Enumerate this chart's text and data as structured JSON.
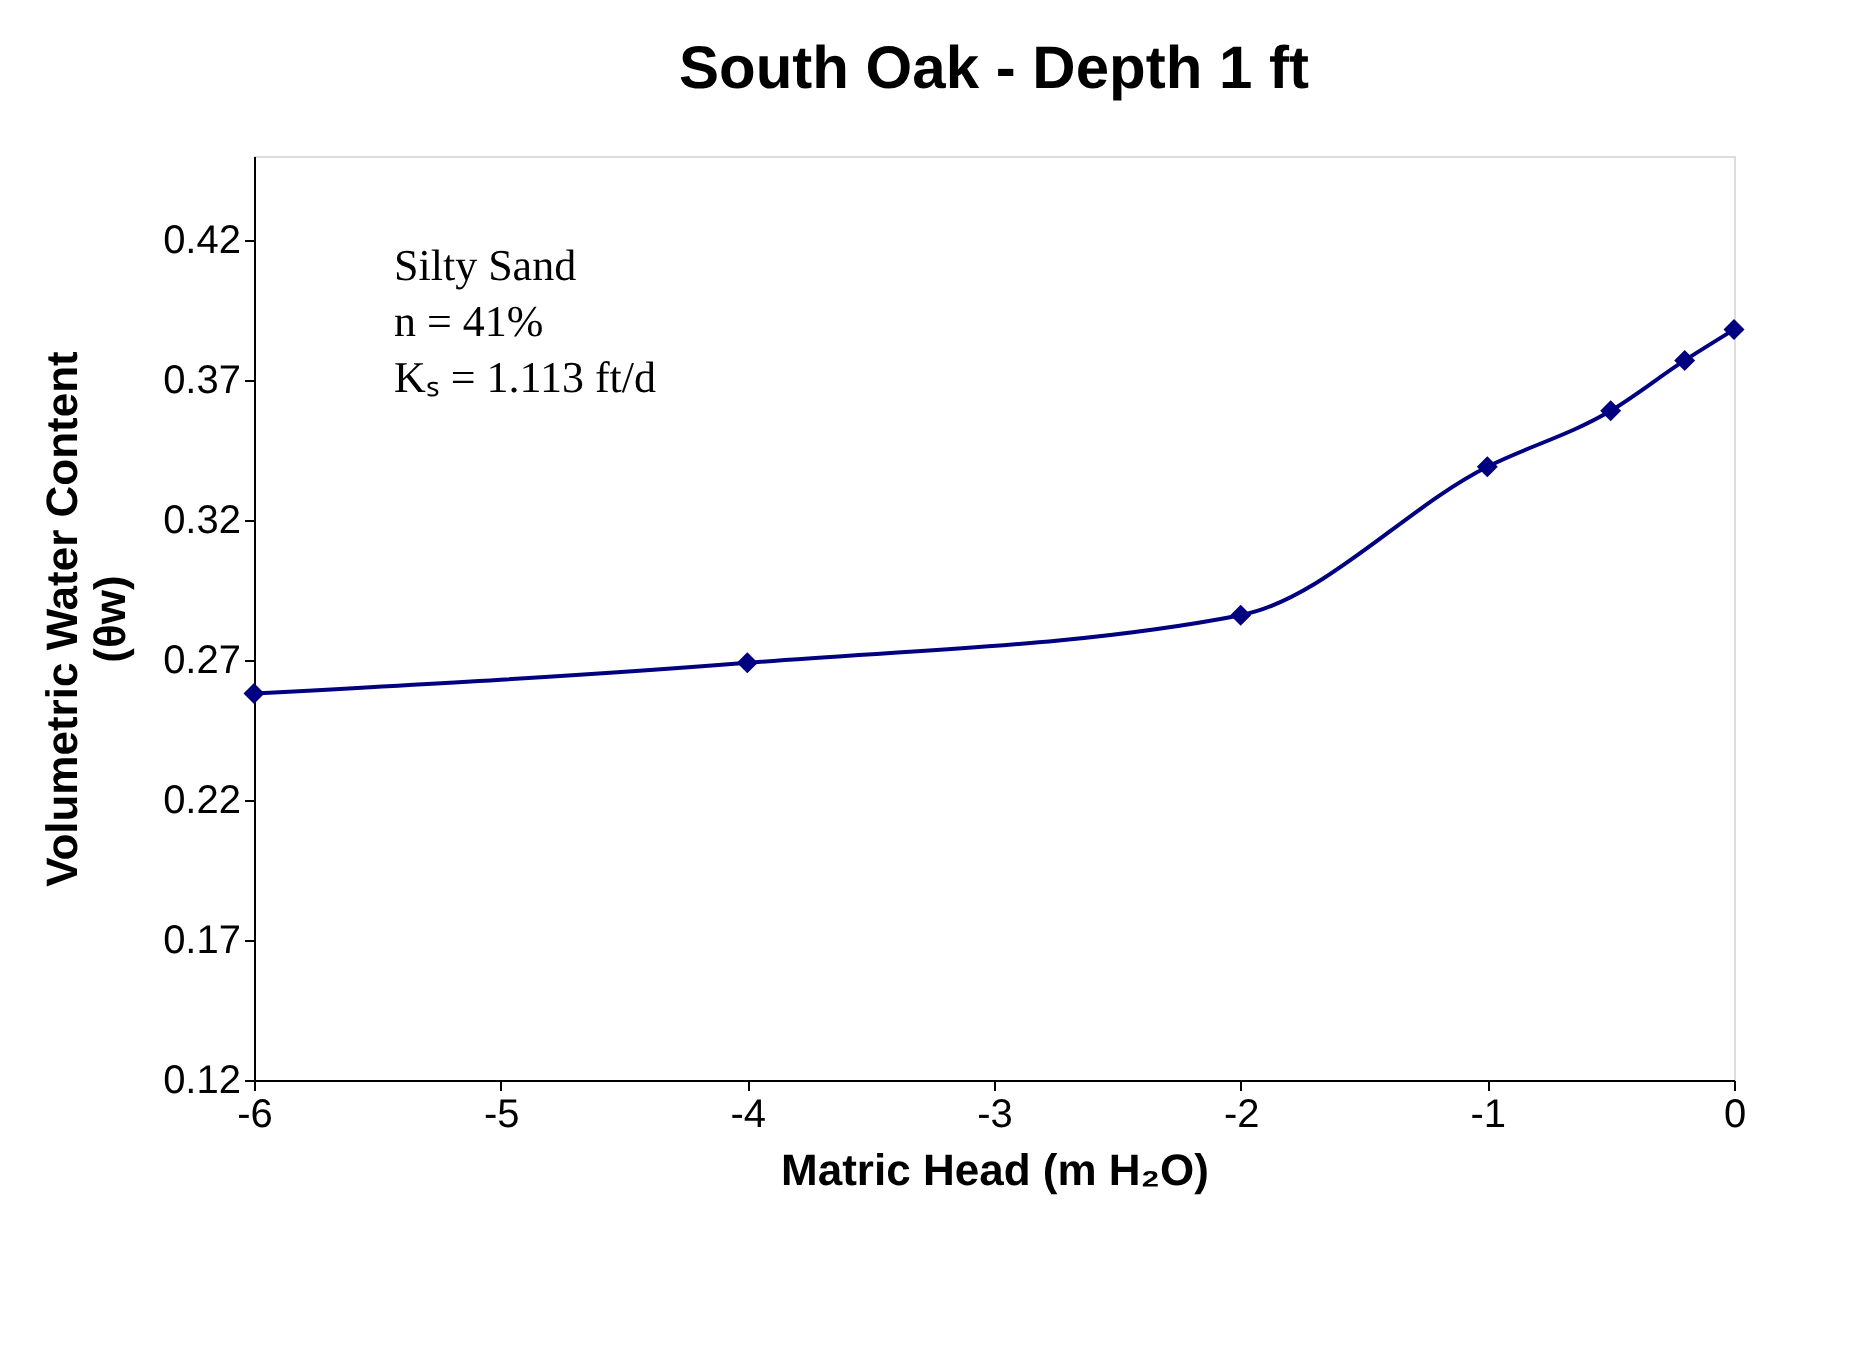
{
  "chart_data": {
    "type": "line",
    "title": "South Oak - Depth 1 ft",
    "xlabel": "Matric Head (m H₂O)",
    "ylabel": "Volumetric Water Content\n(θw)",
    "x": [
      -6,
      -4,
      -2,
      -1,
      -0.5,
      -0.2,
      0
    ],
    "series": [
      {
        "color": "#000080",
        "values": [
          0.258,
          0.269,
          0.286,
          0.339,
          0.359,
          0.377,
          0.388
        ]
      }
    ],
    "xlim": [
      -6,
      0
    ],
    "xticks": [
      -6,
      -5,
      -4,
      -3,
      -2,
      -1,
      0
    ],
    "ylim": [
      0.12,
      0.45
    ],
    "yticks": [
      0.12,
      0.17,
      0.22,
      0.27,
      0.32,
      0.37,
      0.42
    ],
    "annotations": [
      "Silty Sand\nn = 41%\nKₛ = 1.113 ft/d"
    ],
    "grid": false,
    "marker": "diamond",
    "line_style": "solid"
  }
}
